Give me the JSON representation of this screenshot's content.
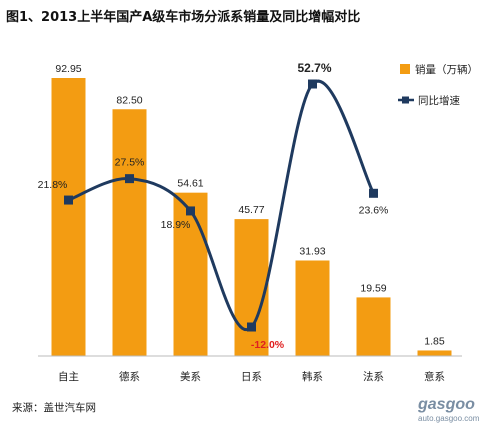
{
  "chart_data": {
    "type": "bar",
    "title": "图1、2013上半年国产A级车市场分派系销量及同比增幅对比",
    "categories": [
      "自主",
      "德系",
      "美系",
      "日系",
      "韩系",
      "法系",
      "意系"
    ],
    "series": [
      {
        "name": "销量（万辆）",
        "type": "bar",
        "values": [
          92.95,
          82.5,
          54.61,
          45.77,
          31.93,
          19.59,
          1.85
        ],
        "labels": [
          "92.95",
          "82.50",
          "54.61",
          "45.77",
          "31.93",
          "19.59",
          "1.85"
        ]
      },
      {
        "name": "同比增速",
        "type": "line",
        "values": [
          21.8,
          27.5,
          18.9,
          -12.0,
          52.7,
          23.6,
          null
        ],
        "labels": [
          "21.8%",
          "27.5%",
          "18.9%",
          "-12.0%",
          "52.7%",
          "23.6%",
          ""
        ]
      }
    ],
    "bar_ylim": [
      0,
      100
    ],
    "line_ylim": [
      -17,
      60
    ],
    "legend_position": "right",
    "grid": false,
    "source": "来源：盖世汽车网",
    "watermark": [
      "gasgoo",
      "auto.gasgoo.com"
    ],
    "colors": {
      "bar": "#f39c12",
      "line": "#1f3a5f",
      "negative_label": "#e02020"
    }
  }
}
